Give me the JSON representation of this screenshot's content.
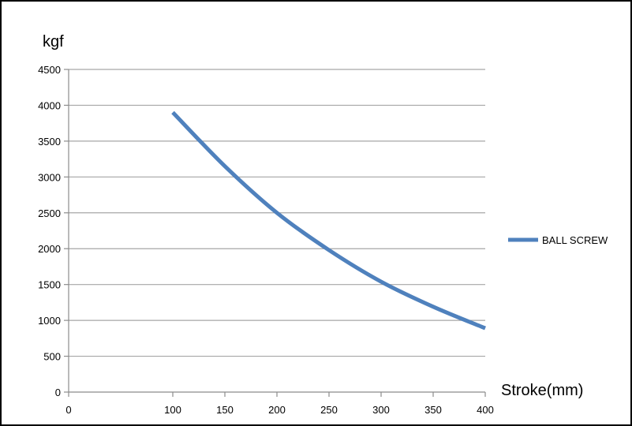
{
  "chart_data": {
    "type": "line",
    "title": "",
    "ylabel": "kgf",
    "xlabel": "Stroke(mm)",
    "xlim": [
      0,
      400
    ],
    "ylim": [
      0,
      4500
    ],
    "xticks": [
      0,
      100,
      150,
      200,
      250,
      300,
      350,
      400
    ],
    "yticks": [
      0,
      500,
      1000,
      1500,
      2000,
      2500,
      3000,
      3500,
      4000,
      4500
    ],
    "grid": true,
    "legend_position": "right",
    "series": [
      {
        "name": "BALL SCREW",
        "color": "#4f81bd",
        "x": [
          100,
          150,
          200,
          250,
          300,
          350,
          400
        ],
        "y": [
          3900,
          3150,
          2500,
          1980,
          1540,
          1190,
          890
        ]
      }
    ]
  }
}
